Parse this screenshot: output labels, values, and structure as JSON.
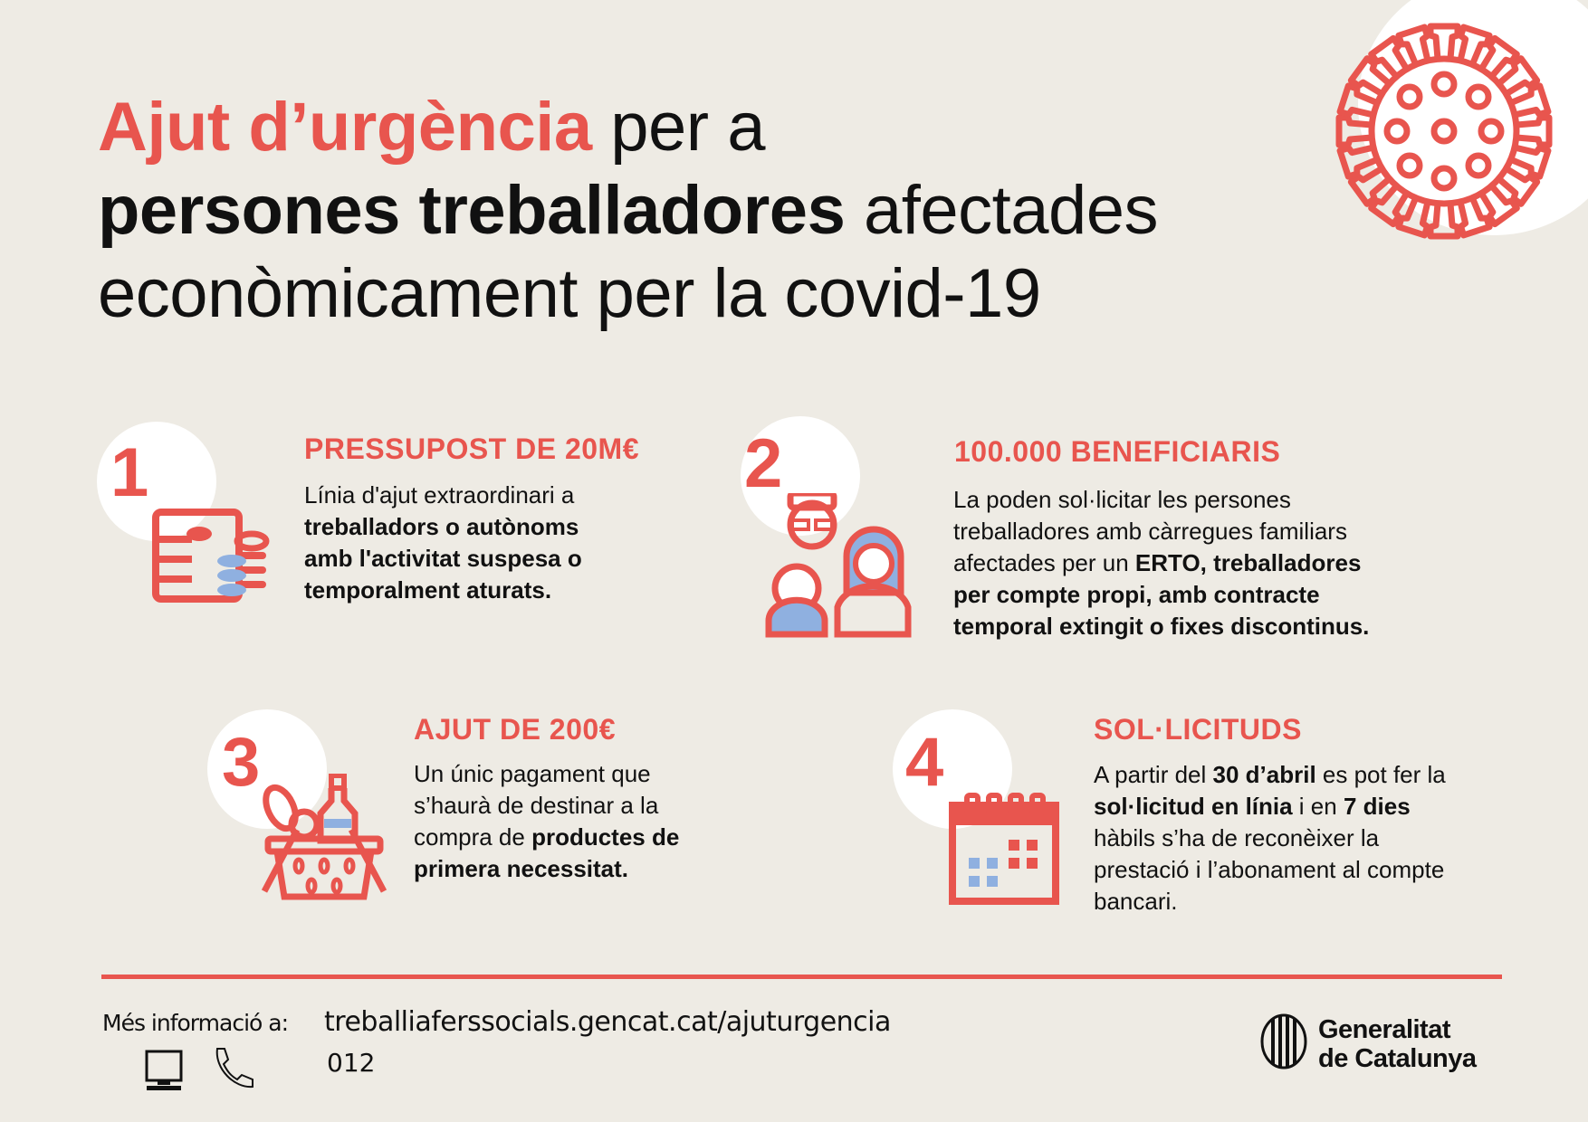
{
  "title": {
    "line1_red": "Ajut d’urgència",
    "line1_rest": " per a",
    "line2_bold": "persones treballadores",
    "line2_rest": " afectades",
    "line3": "econòmicament per la covid-19"
  },
  "colors": {
    "accent": "#e8554e",
    "secondary": "#8fb0e0",
    "background": "#eeebe4"
  },
  "sections": [
    {
      "number": "1",
      "heading": "PRESSUPOST DE 20M€",
      "icon": "money-coins-icon",
      "body": [
        {
          "t": "Línia d'ajut extraordinari a",
          "b": false
        },
        {
          "t": "treballadors o autònoms",
          "b": true
        },
        {
          "t": "amb l'activitat suspesa o",
          "b": true
        },
        {
          "t": "temporalment aturats.",
          "b": true
        }
      ]
    },
    {
      "number": "2",
      "heading": "100.000 BENEFICIARIS",
      "icon": "family-icon",
      "body": [
        {
          "t": "La poden sol·licitar les persones"
        },
        {
          "t": "treballadores amb càrregues familiars"
        },
        {
          "t": "afectades per un ",
          "b2": "ERTO, treballadores"
        },
        {
          "b2": "per compte propi, amb contracte"
        },
        {
          "b2": "temporal extingit o fixes discontinus."
        }
      ]
    },
    {
      "number": "3",
      "heading": "AJUT DE 200€",
      "icon": "shopping-basket-icon",
      "body": [
        {
          "t": "Un únic pagament que"
        },
        {
          "t": "s’haurà de destinar a la"
        },
        {
          "t": "compra de ",
          "b2": "productes de"
        },
        {
          "b2": "primera necessitat."
        }
      ]
    },
    {
      "number": "4",
      "heading": "SOL·LICITUDS",
      "icon": "calendar-icon",
      "body": [
        {
          "t": "A partir del ",
          "b2": "30 d’abril",
          "t2": " es pot fer la"
        },
        {
          "b2": "sol·licitud en línia",
          "t2": " i en ",
          "b3": "7 dies"
        },
        {
          "t": "hàbils s’ha de reconèixer la"
        },
        {
          "t": "prestació i l’abonament al compte"
        },
        {
          "t": "bancari."
        }
      ]
    }
  ],
  "footer": {
    "info_label": "Més informació a:",
    "url": "treballiaferssocials.gencat.cat/ajuturgencia",
    "phone": "012",
    "logo_line1": "Generalitat",
    "logo_line2": "de Catalunya"
  }
}
